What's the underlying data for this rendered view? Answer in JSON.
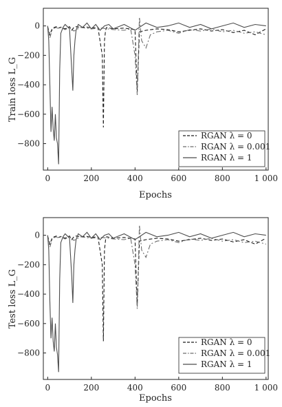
{
  "chart_data": [
    {
      "type": "line",
      "xlabel": "Epochs",
      "ylabel": "Train loss L_G",
      "xlim": [
        -20,
        1010
      ],
      "ylim": [
        -980,
        120
      ],
      "xticks": [
        0,
        200,
        400,
        600,
        800,
        1000
      ],
      "xtick_labels": [
        "0",
        "200",
        "400",
        "600",
        "800",
        "1 000"
      ],
      "yticks": [
        0,
        -200,
        -400,
        -600,
        -800
      ],
      "ytick_labels": [
        "0",
        "−200",
        "−400",
        "−600",
        "−800"
      ],
      "legend_position": "bottom-right",
      "series": [
        {
          "name": "RGAN λ = 0",
          "style": "dashed",
          "color": "#1a1a1a",
          "x": [
            0,
            10,
            20,
            30,
            40,
            50,
            60,
            80,
            100,
            110,
            120,
            130,
            150,
            180,
            200,
            230,
            250,
            255,
            260,
            265,
            270,
            300,
            350,
            400,
            410,
            420,
            450,
            500,
            550,
            600,
            650,
            700,
            750,
            800,
            850,
            900,
            950,
            1000
          ],
          "y": [
            -5,
            -60,
            -20,
            -10,
            -5,
            -15,
            -8,
            -20,
            -5,
            -30,
            -10,
            -5,
            -10,
            -8,
            -15,
            -10,
            -200,
            -690,
            -100,
            -30,
            -10,
            -20,
            -15,
            -25,
            -450,
            -40,
            -30,
            -20,
            -25,
            -40,
            -30,
            -20,
            -35,
            -25,
            -45,
            -30,
            -60,
            -20
          ]
        },
        {
          "name": "RGAN λ = 0.001",
          "style": "dashdot",
          "color": "#6a6a6a",
          "x": [
            0,
            10,
            20,
            30,
            40,
            50,
            60,
            80,
            100,
            120,
            150,
            200,
            250,
            300,
            350,
            380,
            400,
            410,
            420,
            430,
            450,
            470,
            500,
            550,
            600,
            650,
            700,
            750,
            800,
            850,
            900,
            950,
            1000
          ],
          "y": [
            -10,
            -80,
            -30,
            -15,
            -10,
            -20,
            -10,
            -25,
            -10,
            -35,
            -10,
            -20,
            -15,
            -25,
            -30,
            -20,
            -200,
            -470,
            60,
            -100,
            -150,
            -60,
            -40,
            -30,
            -50,
            -25,
            -35,
            -20,
            -40,
            -30,
            -50,
            -40,
            -60
          ]
        },
        {
          "name": "RGAN λ = 1",
          "style": "solid",
          "color": "#4a4a4a",
          "x": [
            0,
            5,
            10,
            15,
            20,
            25,
            30,
            35,
            40,
            45,
            50,
            55,
            60,
            70,
            80,
            90,
            100,
            110,
            115,
            120,
            125,
            130,
            140,
            160,
            180,
            200,
            220,
            240,
            260,
            280,
            300,
            350,
            400,
            450,
            500,
            550,
            600,
            650,
            700,
            750,
            800,
            850,
            900,
            950,
            1000
          ],
          "y": [
            0,
            -100,
            -400,
            -720,
            -550,
            -700,
            -780,
            -600,
            -760,
            -800,
            -940,
            -300,
            -50,
            -10,
            10,
            -5,
            -20,
            -300,
            -440,
            -200,
            -100,
            -30,
            10,
            -10,
            20,
            -20,
            10,
            -30,
            0,
            10,
            -20,
            10,
            -30,
            20,
            -10,
            0,
            20,
            -10,
            10,
            -20,
            0,
            20,
            -10,
            10,
            0
          ]
        }
      ]
    },
    {
      "type": "line",
      "xlabel": "Epochs",
      "ylabel": "Test loss L_G",
      "xlim": [
        -20,
        1010
      ],
      "ylim": [
        -980,
        120
      ],
      "xticks": [
        0,
        200,
        400,
        600,
        800,
        1000
      ],
      "xtick_labels": [
        "0",
        "200",
        "400",
        "600",
        "800",
        "1 000"
      ],
      "yticks": [
        0,
        -200,
        -400,
        -600,
        -800
      ],
      "ytick_labels": [
        "0",
        "−200",
        "−400",
        "−600",
        "−800"
      ],
      "legend_position": "bottom-right",
      "series": [
        {
          "name": "RGAN λ = 0",
          "style": "dashed",
          "color": "#1a1a1a",
          "x": [
            0,
            10,
            20,
            30,
            40,
            50,
            60,
            80,
            100,
            110,
            120,
            130,
            150,
            180,
            200,
            230,
            250,
            255,
            260,
            265,
            270,
            300,
            350,
            400,
            410,
            420,
            450,
            500,
            550,
            600,
            650,
            700,
            750,
            800,
            850,
            900,
            950,
            1000
          ],
          "y": [
            -5,
            -60,
            -20,
            -10,
            -5,
            -15,
            -8,
            -20,
            -5,
            -30,
            -10,
            -5,
            -10,
            -8,
            -15,
            -10,
            -200,
            -720,
            -100,
            -30,
            -10,
            -20,
            -15,
            -25,
            -480,
            -40,
            -30,
            -20,
            -25,
            -40,
            -30,
            -20,
            -35,
            -25,
            -45,
            -30,
            -60,
            -20
          ]
        },
        {
          "name": "RGAN λ = 0.001",
          "style": "dashdot",
          "color": "#6a6a6a",
          "x": [
            0,
            10,
            20,
            30,
            40,
            50,
            60,
            80,
            100,
            120,
            150,
            200,
            250,
            300,
            350,
            380,
            400,
            410,
            420,
            430,
            450,
            470,
            500,
            550,
            600,
            650,
            700,
            750,
            800,
            850,
            900,
            950,
            1000
          ],
          "y": [
            -10,
            -80,
            -30,
            -15,
            -10,
            -20,
            -10,
            -25,
            -10,
            -35,
            -10,
            -20,
            -15,
            -25,
            -30,
            -20,
            -200,
            -500,
            70,
            -100,
            -150,
            -60,
            -40,
            -30,
            -50,
            -25,
            -35,
            -20,
            -40,
            -30,
            -50,
            -40,
            -60
          ]
        },
        {
          "name": "RGAN λ = 1",
          "style": "solid",
          "color": "#4a4a4a",
          "x": [
            0,
            5,
            10,
            15,
            20,
            25,
            30,
            35,
            40,
            45,
            50,
            55,
            60,
            70,
            80,
            90,
            100,
            110,
            115,
            120,
            125,
            130,
            140,
            160,
            180,
            200,
            220,
            240,
            260,
            280,
            300,
            350,
            400,
            450,
            500,
            550,
            600,
            650,
            700,
            750,
            800,
            850,
            900,
            950,
            1000
          ],
          "y": [
            0,
            -100,
            -450,
            -700,
            -560,
            -720,
            -790,
            -600,
            -760,
            -810,
            -930,
            -300,
            -50,
            -10,
            10,
            -5,
            -20,
            -280,
            -460,
            -200,
            -100,
            -30,
            10,
            -10,
            20,
            -20,
            10,
            -30,
            0,
            10,
            -20,
            10,
            -30,
            20,
            -10,
            0,
            20,
            -10,
            10,
            -20,
            0,
            20,
            -10,
            10,
            0
          ]
        }
      ]
    }
  ]
}
